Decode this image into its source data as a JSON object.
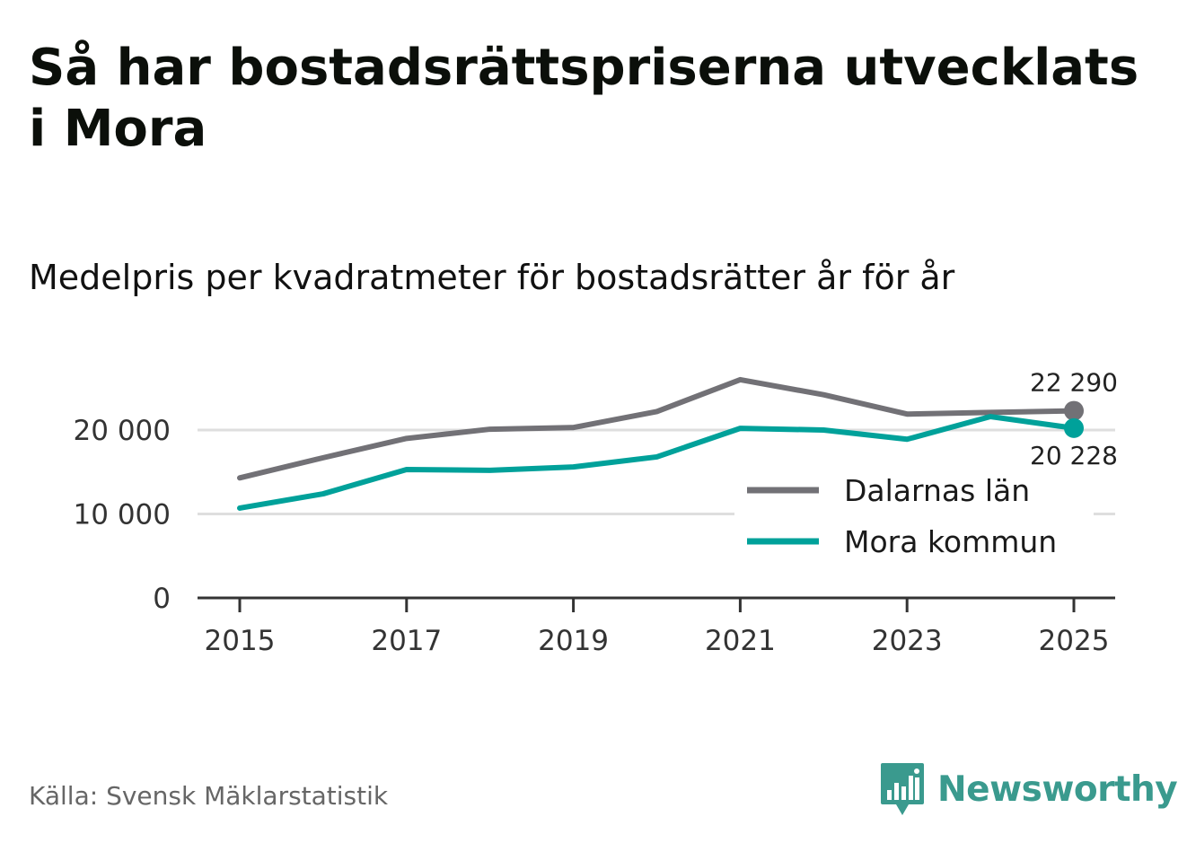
{
  "title": "Så har bostadsrättspriserna utvecklats i Mora",
  "subtitle": "Medelpris per kvadratmeter för bostadsrätter år för år",
  "source": "Källa: Svensk Mäklarstatistik",
  "brand": {
    "name": "Newsworthy",
    "icon": "newsworthy-logo-icon",
    "color": "#3a9a8e"
  },
  "chart_data": {
    "type": "line",
    "title": "Medelpris per kvadratmeter för bostadsrätter år för år",
    "xlabel": "",
    "ylabel": "",
    "x": [
      2015,
      2016,
      2017,
      2018,
      2019,
      2020,
      2021,
      2022,
      2023,
      2024,
      2025
    ],
    "x_ticks": [
      "2015",
      "2017",
      "2019",
      "2021",
      "2023",
      "2025"
    ],
    "y_ticks": [
      {
        "value": 0,
        "label": "0"
      },
      {
        "value": 10000,
        "label": "10 000"
      },
      {
        "value": 20000,
        "label": "20 000"
      }
    ],
    "ylim": [
      0,
      27000
    ],
    "grid": true,
    "legend_position": "bottom-right",
    "series": [
      {
        "name": "Dalarnas län",
        "color": "#727176",
        "values": [
          14300,
          16700,
          19000,
          20100,
          20300,
          22200,
          26000,
          24200,
          21900,
          22100,
          22290
        ],
        "end_label": "22 290"
      },
      {
        "name": "Mora kommun",
        "color": "#00a19a",
        "values": [
          10700,
          12400,
          15300,
          15200,
          15600,
          16800,
          20200,
          20000,
          18900,
          21600,
          20228
        ],
        "end_label": "20 228"
      }
    ]
  }
}
